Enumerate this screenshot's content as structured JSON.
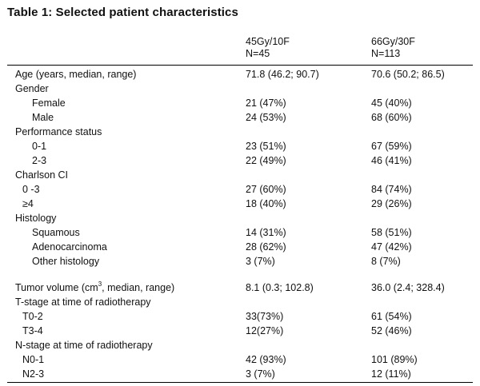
{
  "title": "Table 1: Selected patient characteristics",
  "columns": [
    {
      "line1": "45Gy/10F",
      "line2": "N=45"
    },
    {
      "line1": "66Gy/30F",
      "line2": "N=113"
    }
  ],
  "rows": [
    {
      "label": "Age (years, median, range)",
      "c1": "71.8 (46.2; 90.7)",
      "c2": "70.6 (50.2; 86.5)"
    },
    {
      "label": "Gender",
      "c1": "",
      "c2": ""
    },
    {
      "label": "Female",
      "c1": "21 (47%)",
      "c2": "45 (40%)"
    },
    {
      "label": "Male",
      "c1": "24 (53%)",
      "c2": "68 (60%)"
    },
    {
      "label": "Performance status",
      "c1": "",
      "c2": ""
    },
    {
      "label": "0-1",
      "c1": "23 (51%)",
      "c2": "67 (59%)"
    },
    {
      "label": "2-3",
      "c1": "22 (49%)",
      "c2": "46 (41%)"
    },
    {
      "label": "Charlson CI",
      "c1": "",
      "c2": ""
    },
    {
      "label": "0 -3",
      "c1": "27 (60%)",
      "c2": "84 (74%)"
    },
    {
      "label": "≥4",
      "c1": "18 (40%)",
      "c2": "29 (26%)"
    },
    {
      "label": "Histology",
      "c1": "",
      "c2": ""
    },
    {
      "label": "Squamous",
      "c1": "14 (31%)",
      "c2": "58 (51%)"
    },
    {
      "label": "Adenocarcinoma",
      "c1": "28 (62%)",
      "c2": "47 (42%)"
    },
    {
      "label": "Other histology",
      "c1": "3 (7%)",
      "c2": "8 (7%)"
    },
    {
      "label_pre": "Tumor volume (cm",
      "label_sup": "3",
      "label_post": ", median, range)",
      "c1": "8.1 (0.3; 102.8)",
      "c2": "36.0 (2.4; 328.4)"
    },
    {
      "label": "T-stage at time of radiotherapy",
      "c1": "",
      "c2": ""
    },
    {
      "label": "T0-2",
      "c1": "33(73%)",
      "c2": "61 (54%)"
    },
    {
      "label": "T3-4",
      "c1": "12(27%)",
      "c2": "52 (46%)"
    },
    {
      "label": "N-stage at time of radiotherapy",
      "c1": "",
      "c2": ""
    },
    {
      "label": "N0-1",
      "c1": "42 (93%)",
      "c2": "101 (89%)"
    },
    {
      "label": "N2-3",
      "c1": "3 (7%)",
      "c2": "12 (11%)"
    }
  ]
}
